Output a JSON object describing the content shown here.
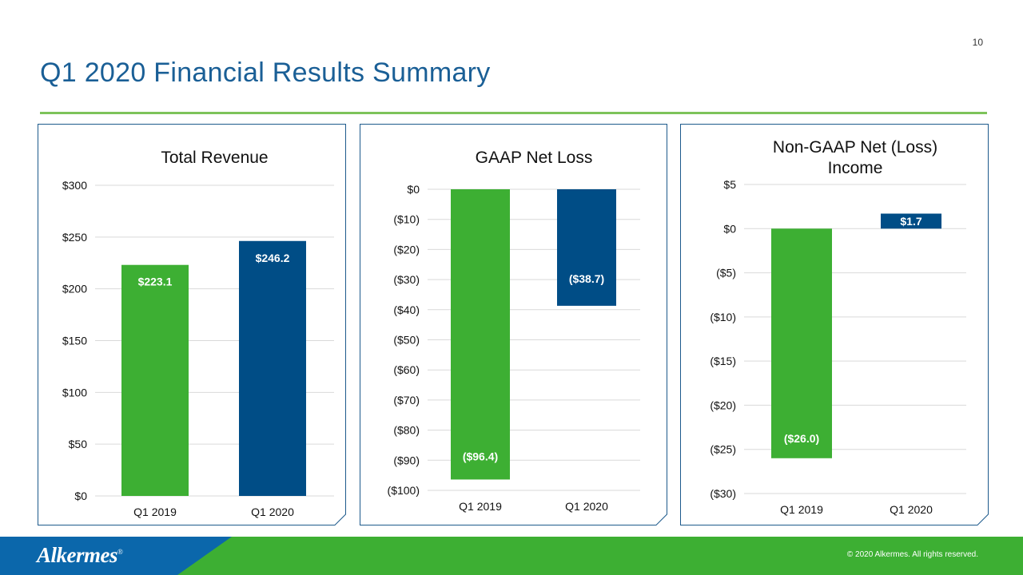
{
  "slide": {
    "page_number": "10",
    "title": "Q1 2020 Financial Results Summary",
    "logo_text": "Alkermes",
    "logo_mark": "®",
    "copyright": "© 2020 Alkermes. All rights reserved."
  },
  "colors": {
    "title": "#1a5f96",
    "accent_green": "#3daf33",
    "accent_blue": "#004d86",
    "rule_green": "#7dc35a",
    "panel_border": "#1d5a8c",
    "footer_green": "#3daf33",
    "footer_blue": "#0b67ab"
  },
  "chart_data": [
    {
      "type": "bar",
      "title": [
        "Total Revenue"
      ],
      "categories": [
        "Q1 2019",
        "Q1 2020"
      ],
      "values": [
        223.1,
        246.2
      ],
      "value_labels": [
        "$223.1",
        "$246.2"
      ],
      "bar_colors": [
        "#3daf33",
        "#004d86"
      ],
      "ylim": [
        0,
        300
      ],
      "yticks": [
        300,
        250,
        200,
        150,
        100,
        50,
        0
      ],
      "ytick_labels": [
        "$300",
        "$250",
        "$200",
        "$150",
        "$100",
        "$50",
        "$0"
      ],
      "grid": true
    },
    {
      "type": "bar",
      "title": [
        "GAAP Net Loss"
      ],
      "categories": [
        "Q1 2019",
        "Q1 2020"
      ],
      "values": [
        -96.4,
        -38.7
      ],
      "value_labels": [
        "($96.4)",
        "($38.7)"
      ],
      "bar_colors": [
        "#3daf33",
        "#004d86"
      ],
      "ylim": [
        -100,
        0
      ],
      "yticks": [
        0,
        -10,
        -20,
        -30,
        -40,
        -50,
        -60,
        -70,
        -80,
        -90,
        -100
      ],
      "ytick_labels": [
        "$0",
        "($10)",
        "($20)",
        "($30)",
        "($40)",
        "($50)",
        "($60)",
        "($70)",
        "($80)",
        "($90)",
        "($100)"
      ],
      "grid": true
    },
    {
      "type": "bar",
      "title": [
        "Non-GAAP Net (Loss)",
        "Income"
      ],
      "categories": [
        "Q1 2019",
        "Q1 2020"
      ],
      "values": [
        -26.0,
        1.7
      ],
      "value_labels": [
        "($26.0)",
        "$1.7"
      ],
      "bar_colors": [
        "#3daf33",
        "#004d86"
      ],
      "ylim": [
        -30,
        5
      ],
      "yticks": [
        5,
        0,
        -5,
        -10,
        -15,
        -20,
        -25,
        -30
      ],
      "ytick_labels": [
        "$5",
        "$0",
        "($5)",
        "($10)",
        "($15)",
        "($20)",
        "($25)",
        "($30)"
      ],
      "grid": true
    }
  ]
}
